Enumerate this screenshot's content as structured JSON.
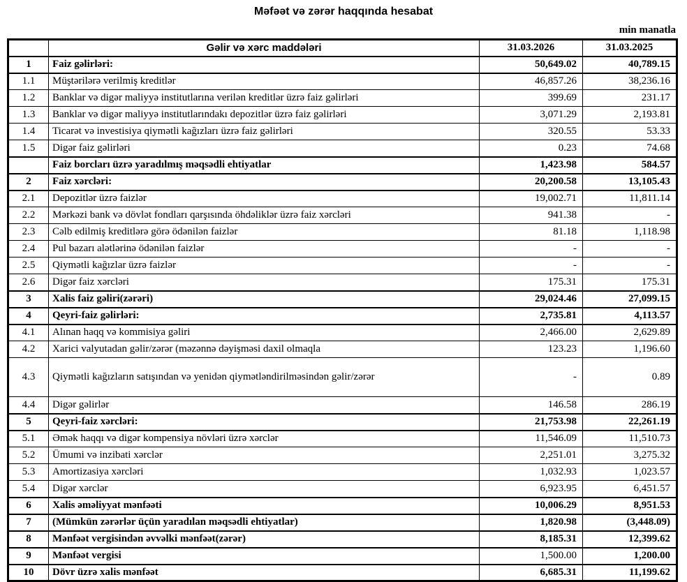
{
  "title": "Məfəət və zərər haqqında hesabat",
  "unit_note": "min manatla",
  "table": {
    "header": {
      "num": "",
      "label": "Gəlir və xərc maddələri",
      "col_2026": "31.03.2026",
      "col_2025": "31.03.2025"
    },
    "rows": [
      {
        "num": "1",
        "label": "Faiz gəlirləri:",
        "v1": "50,649.02",
        "v2": "40,789.15",
        "bold": true
      },
      {
        "num": "1.1",
        "label": "Müştərilərə verilmiş kreditlər",
        "v1": "46,857.26",
        "v2": "38,236.16"
      },
      {
        "num": "1.2",
        "label": "Banklar və digər maliyyə institutlarına verilən kreditlər üzrə faiz gəlirləri",
        "v1": "399.69",
        "v2": "231.17"
      },
      {
        "num": "1.3",
        "label": "Banklar və digər maliyyə institutlarındakı depozitlər üzrə faiz gəlirləri",
        "v1": "3,071.29",
        "v2": "2,193.81"
      },
      {
        "num": "1.4",
        "label": "Ticarət və investisiya qiymətli kağızları üzrə faiz gəlirləri",
        "v1": "320.55",
        "v2": "53.33"
      },
      {
        "num": "1.5",
        "label": "Digər faiz gəlirləri",
        "v1": "0.23",
        "v2": "74.68"
      },
      {
        "num": "",
        "label": "Faiz borcları üzrə yaradılmış məqsədli ehtiyatlar",
        "v1": "1,423.98",
        "v2": "584.57",
        "bold": true
      },
      {
        "num": "2",
        "label": "Faiz xərcləri:",
        "v1": "20,200.58",
        "v2": "13,105.43",
        "bold": true
      },
      {
        "num": "2.1",
        "label": "Depozitlər üzrə faizlər",
        "v1": "19,002.71",
        "v2": "11,811.14"
      },
      {
        "num": "2.2",
        "label": "Mərkəzi bank və dövlət fondları qarşısında öhdəliklər üzrə faiz xərcləri",
        "v1": "941.38",
        "v2": "-"
      },
      {
        "num": "2.3",
        "label": "Cəlb edilmiş kreditlərə görə ödənilən faizlər",
        "v1": "81.18",
        "v2": "1,118.98"
      },
      {
        "num": "2.4",
        "label": "Pul bazarı alətlərinə ödənilən faizlər",
        "v1": "-",
        "v2": "-"
      },
      {
        "num": "2.5",
        "label": "Qiymətli kağızlar üzrə faizlər",
        "v1": "-",
        "v2": "-"
      },
      {
        "num": "2.6",
        "label": "Digər faiz xərcləri",
        "v1": "175.31",
        "v2": "175.31"
      },
      {
        "num": "3",
        "label": "Xalis faiz gəliri(zərəri)",
        "v1": "29,024.46",
        "v2": "27,099.15",
        "bold": true
      },
      {
        "num": "4",
        "label": "Qeyri-faiz gəlirləri:",
        "v1": "2,735.81",
        "v2": "4,113.57",
        "bold": true
      },
      {
        "num": "4.1",
        "label": "Alınan haqq və kommisiya gəliri",
        "v1": "2,466.00",
        "v2": "2,629.89"
      },
      {
        "num": "4.2",
        "label": "Xarici valyutadan gəlir/zərər (məzənnə dəyişməsi daxil olmaqla",
        "v1": "123.23",
        "v2": "1,196.60"
      },
      {
        "num": "4.3",
        "label": "Qiymətli kağızların satışından və yenidən qiymətləndirilməsindən gəlir/zərər",
        "v1": "-",
        "v2": "0.89",
        "tall": true
      },
      {
        "num": "4.4",
        "label": "Digər gəlirlər",
        "v1": "146.58",
        "v2": "286.19"
      },
      {
        "num": "5",
        "label": "Qeyri-faiz xərcləri:",
        "v1": "21,753.98",
        "v2": "22,261.19",
        "bold": true
      },
      {
        "num": "5.1",
        "label": "Əmək haqqı və digər kompensiya növləri üzrə xərclər",
        "v1": "11,546.09",
        "v2": "11,510.73"
      },
      {
        "num": "5.2",
        "label": "Ümumi və inzibati xərclər",
        "v1": "2,251.01",
        "v2": "3,275.32"
      },
      {
        "num": "5.3",
        "label": "Amortizasiya xərcləri",
        "v1": "1,032.93",
        "v2": "1,023.57"
      },
      {
        "num": "5.4",
        "label": "Digər xərclər",
        "v1": "6,923.95",
        "v2": "6,451.57"
      },
      {
        "num": "6",
        "label": "Xalis əməliyyat mənfəəti",
        "v1": "10,006.29",
        "v2": "8,951.53",
        "bold": true
      },
      {
        "num": "7",
        "label": "(Mümkün zərərlər üçün yaradılan məqsədli ehtiyatlar)",
        "v1": "1,820.98",
        "v2": "(3,448.09)",
        "bold": true
      },
      {
        "num": "8",
        "label": "Mənfəət vergisindən əvvəlki mənfəət(zərər)",
        "v1": "8,185.31",
        "v2": "12,399.62",
        "bold": true
      },
      {
        "num": "9",
        "label": "Mənfəət vergisi",
        "v1": "1,500.00",
        "v2": "1,200.00",
        "bold": true,
        "v1_regular": true
      },
      {
        "num": "10",
        "label": "Dövr üzrə xalis mənfəət",
        "v1": "6,685.31",
        "v2": "11,199.62",
        "bold": true
      }
    ]
  },
  "colors": {
    "text": "#000000",
    "background": "#ffffff",
    "border": "#000000"
  }
}
